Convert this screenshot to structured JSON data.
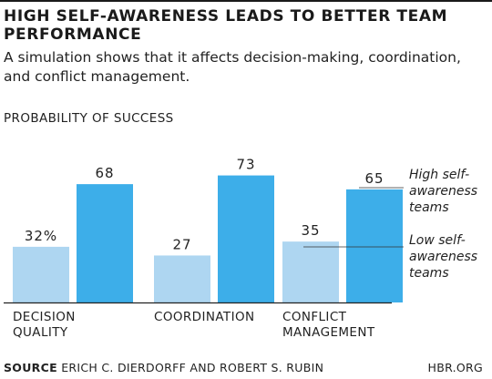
{
  "header": {
    "title": "HIGH SELF-AWARENESS LEADS TO BETTER TEAM PERFORMANCE",
    "subtitle": "A simulation shows that it affects decision-making, coordination, and conflict management."
  },
  "footer": {
    "source_label": "SOURCE",
    "source_text": "ERICH C. DIERDORFF AND ROBERT S. RUBIN",
    "brand": "HBR.ORG"
  },
  "chart_data": {
    "type": "bar",
    "ylabel": "PROBABILITY OF SUCCESS",
    "ylim": [
      0,
      100
    ],
    "categories": [
      [
        "DECISION",
        "QUALITY"
      ],
      [
        "COORDINATION"
      ],
      [
        "CONFLICT",
        "MANAGEMENT"
      ]
    ],
    "series": [
      {
        "name": [
          "Low self-",
          "awareness",
          "teams"
        ],
        "values": [
          32,
          27,
          35
        ],
        "labels": [
          "32%",
          "27",
          "35"
        ],
        "color": "#aed6f1"
      },
      {
        "name": [
          "High self-",
          "awareness",
          "teams"
        ],
        "values": [
          68,
          73,
          65
        ],
        "labels": [
          "68",
          "73",
          "65"
        ],
        "color": "#3daee9"
      }
    ],
    "grid": false,
    "legend_placement": "right"
  }
}
